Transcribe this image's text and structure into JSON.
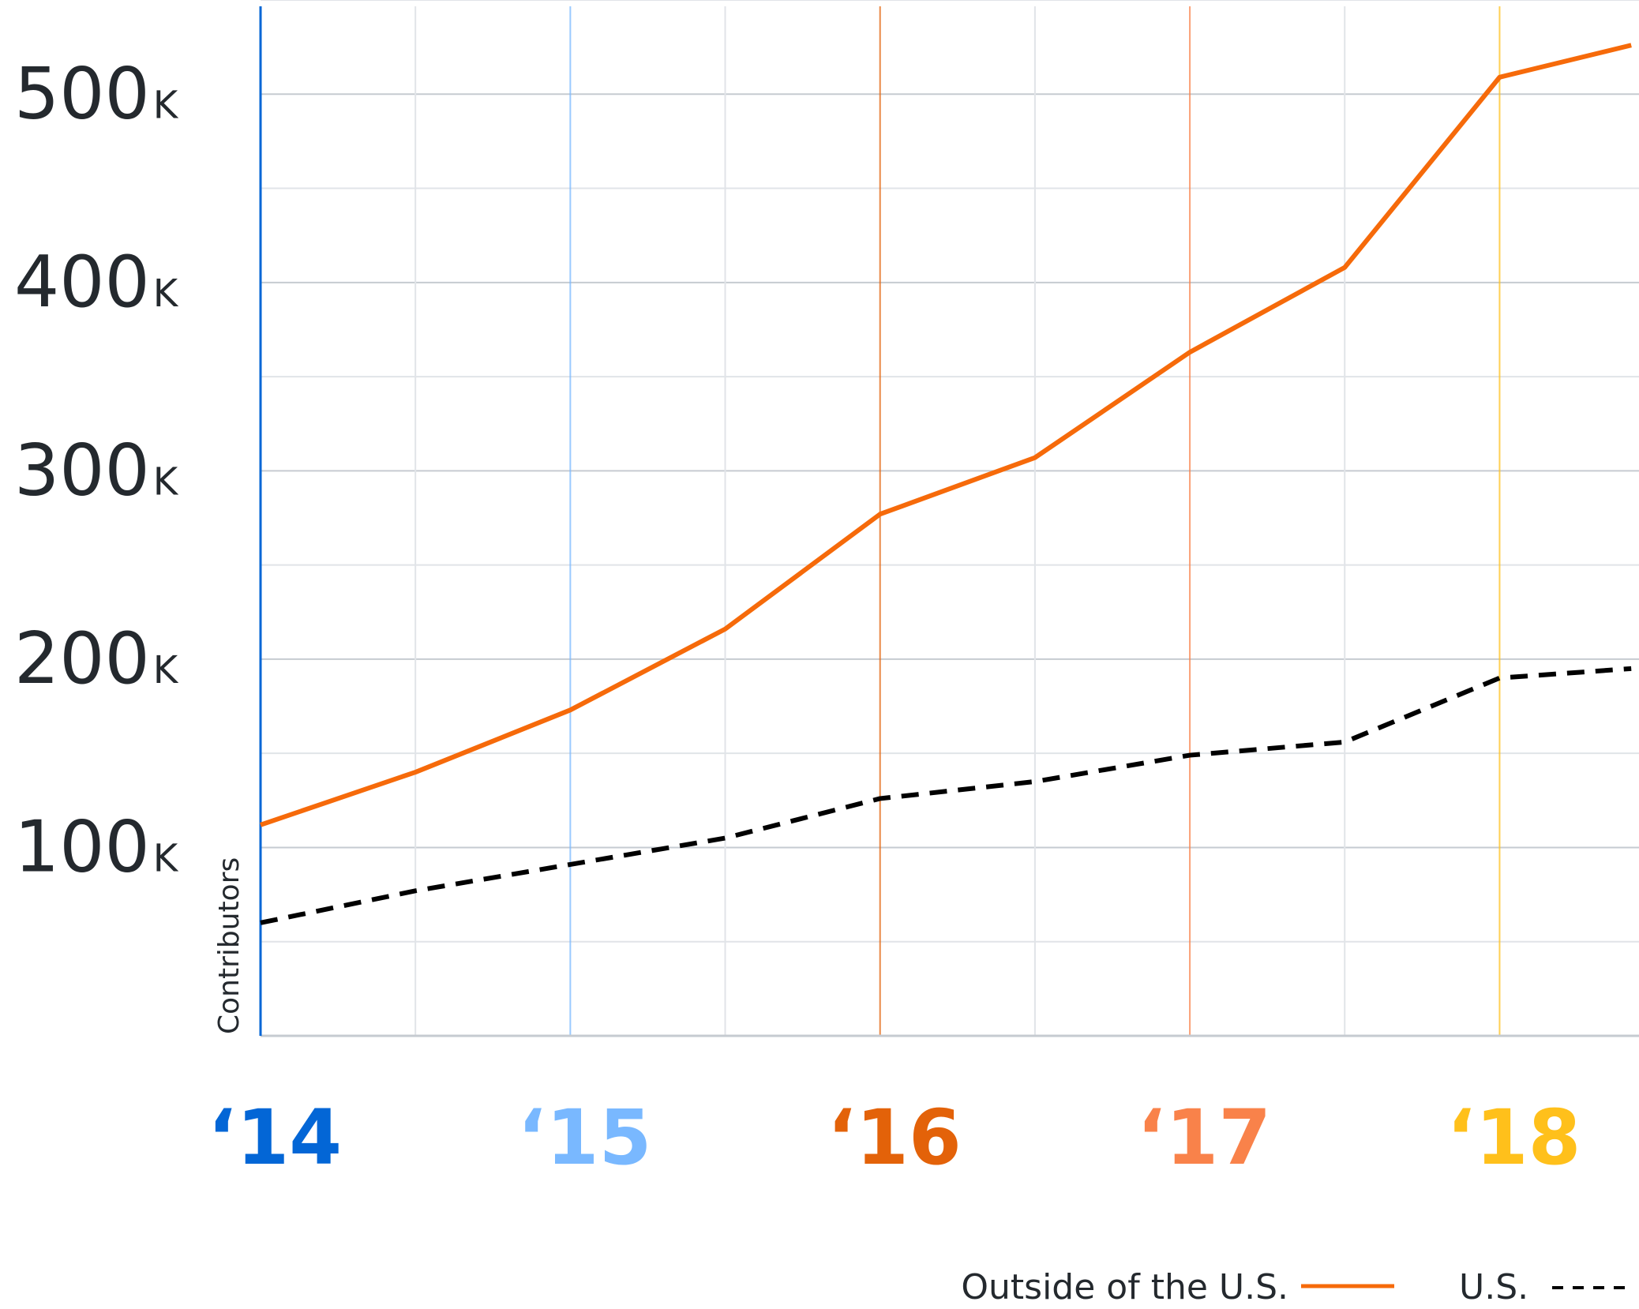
{
  "chart_data": {
    "type": "line",
    "ylabel": "Contributors",
    "ylim": [
      0,
      550000
    ],
    "yticks": [
      100000,
      200000,
      300000,
      400000,
      500000
    ],
    "ytick_labels": [
      "100",
      "200",
      "300",
      "400",
      "500"
    ],
    "ytick_suffix": "K",
    "xlim": [
      0,
      8.9
    ],
    "x": [
      0,
      1,
      2,
      3,
      4,
      5,
      6,
      7,
      8,
      8.85
    ],
    "xticks": [
      {
        "label": "‘14",
        "pos": 0,
        "color": "#0366d6"
      },
      {
        "label": "‘15",
        "pos": 2,
        "color": "#79b8ff"
      },
      {
        "label": "‘16",
        "pos": 4,
        "color": "#e36209"
      },
      {
        "label": "‘17",
        "pos": 6,
        "color": "#f9824a"
      },
      {
        "label": "‘18",
        "pos": 8,
        "color": "#ffc01b"
      }
    ],
    "grid": true,
    "legend_position": "bottom-right",
    "series": [
      {
        "name": "Outside of the U.S.",
        "style": "solid",
        "color": "#f66a0a",
        "values": [
          112000,
          140000,
          173000,
          216000,
          277000,
          307000,
          363000,
          408000,
          509000,
          526000
        ]
      },
      {
        "name": "U.S.",
        "style": "dashed",
        "color": "#000000",
        "values": [
          60000,
          77000,
          91000,
          105000,
          126000,
          135000,
          149000,
          156000,
          190000,
          195000
        ]
      }
    ]
  },
  "legend": {
    "items": [
      {
        "label": "Outside of the U.S.",
        "color": "#f66a0a",
        "style": "solid"
      },
      {
        "label": "U.S.",
        "color": "#000000",
        "style": "dashed"
      }
    ]
  }
}
